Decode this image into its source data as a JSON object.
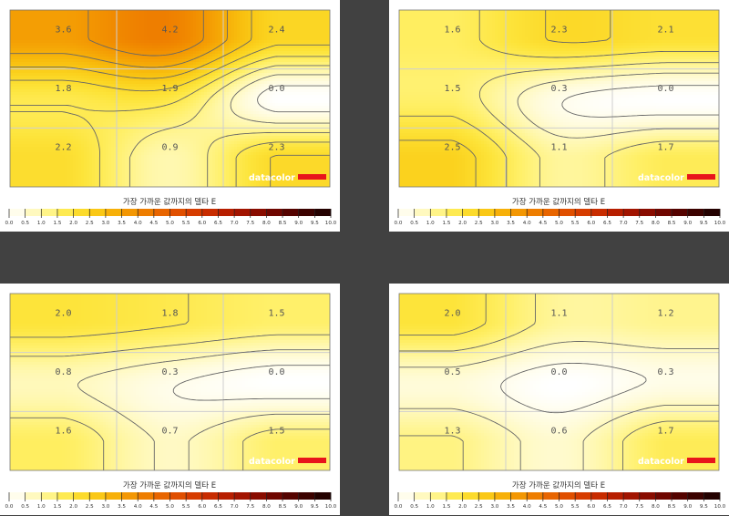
{
  "chart_data": [
    {
      "type": "heatmap",
      "scale_title": "가장 가까운 값까지의 델타 E",
      "rows": 3,
      "cols": 3,
      "values": [
        [
          3.6,
          4.2,
          2.4
        ],
        [
          1.8,
          1.9,
          0.0
        ],
        [
          2.2,
          0.9,
          2.3
        ]
      ],
      "labels": [
        [
          "3.6",
          "4.2",
          "2.4"
        ],
        [
          "1.8",
          "1.9",
          "0.0"
        ],
        [
          "2.2",
          "0.9",
          "2.3"
        ]
      ],
      "logo": "datacolor"
    },
    {
      "type": "heatmap",
      "scale_title": "가장 가까운 값까지의 델타 E",
      "rows": 3,
      "cols": 3,
      "values": [
        [
          1.6,
          2.3,
          2.1
        ],
        [
          1.5,
          0.3,
          0.0
        ],
        [
          2.5,
          1.1,
          1.7
        ]
      ],
      "labels": [
        [
          "1.6",
          "2.3",
          "2.1"
        ],
        [
          "1.5",
          "0.3",
          "0.0"
        ],
        [
          "2.5",
          "1.1",
          "1.7"
        ]
      ],
      "logo": "datacolor"
    },
    {
      "type": "heatmap",
      "scale_title": "가장 가까운 값까지의 델타 E",
      "rows": 3,
      "cols": 3,
      "values": [
        [
          2.0,
          1.8,
          1.5
        ],
        [
          0.8,
          0.3,
          0.0
        ],
        [
          1.6,
          0.7,
          1.5
        ]
      ],
      "labels": [
        [
          "2.0",
          "1.8",
          "1.5"
        ],
        [
          "0.8",
          "0.3",
          "0.0"
        ],
        [
          "1.6",
          "0.7",
          "1.5"
        ]
      ],
      "logo": "datacolor"
    },
    {
      "type": "heatmap",
      "scale_title": "가장 가까운 값까지의 델타 E",
      "rows": 3,
      "cols": 3,
      "values": [
        [
          2.0,
          1.1,
          1.2
        ],
        [
          0.5,
          0.0,
          0.3
        ],
        [
          1.3,
          0.6,
          1.7
        ]
      ],
      "labels": [
        [
          "2.0",
          "1.1",
          "1.2"
        ],
        [
          "0.5",
          "0.0",
          "0.3"
        ],
        [
          "1.3",
          "0.6",
          "1.7"
        ]
      ],
      "logo": "datacolor"
    }
  ],
  "color_scale": {
    "ticks": [
      "0.0",
      "0.5",
      "1.0",
      "1.5",
      "2.0",
      "2.5",
      "3.0",
      "3.5",
      "4.0",
      "4.5",
      "5.0",
      "5.5",
      "6.0",
      "6.5",
      "7.0",
      "7.5",
      "8.0",
      "8.5",
      "9.0",
      "9.5",
      "10.0"
    ],
    "min": 0,
    "max": 10,
    "colors": [
      "#ffffff",
      "#fffbd8",
      "#fff7a6",
      "#fff06a",
      "#fde43a",
      "#fbd21e",
      "#f8bd0d",
      "#f5a305",
      "#f18a00",
      "#eb7000",
      "#e45900",
      "#dc4500",
      "#d03300",
      "#c02400",
      "#ad1800",
      "#960f00",
      "#7c0800",
      "#620400",
      "#480200",
      "#2f0100",
      "#180000"
    ]
  },
  "colors": {
    "background": "#414141",
    "logo_bar": "#e8141b"
  }
}
